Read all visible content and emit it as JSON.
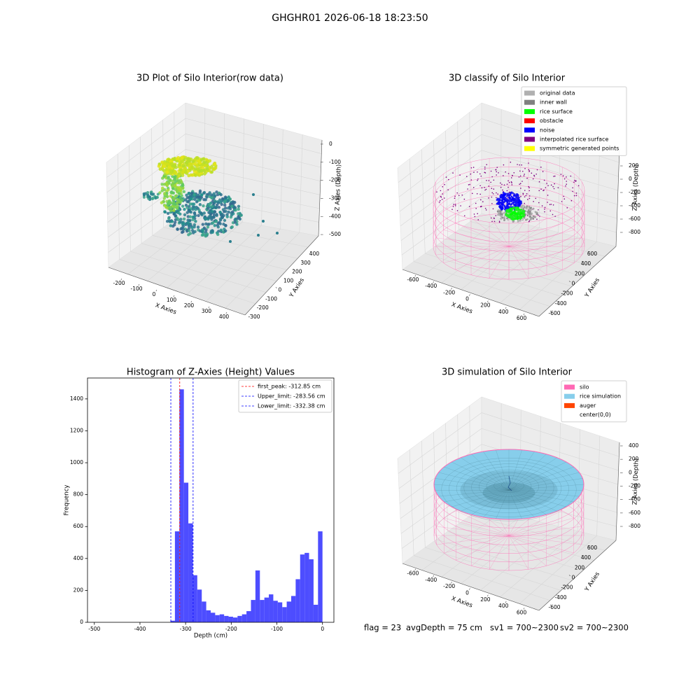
{
  "title": "GHGHR01 2026-06-18 18:23:50",
  "footer": [
    "flag = 23",
    "avgDepth = 75 cm",
    "sv1 = 700~2300",
    "sv2 = 700~2300"
  ],
  "chart_data": [
    {
      "type": "scatter3d",
      "title": "3D Plot of Silo Interior(row data)",
      "xlabel": "X Axies",
      "ylabel": "Y Axies",
      "zlabel": "Z Axies (Depth)",
      "xlim": [
        -250,
        450
      ],
      "xticks": [
        -200,
        -100,
        0,
        100,
        200,
        300,
        400
      ],
      "ylim": [
        -350,
        450
      ],
      "yticks": [
        -300,
        -200,
        -100,
        0,
        100,
        200,
        300,
        400
      ],
      "zlim": [
        -550,
        50
      ],
      "zticks": [
        -500,
        -400,
        -300,
        -200,
        -100,
        0
      ]
    },
    {
      "type": "scatter3d",
      "title": "3D classify of Silo Interior",
      "xlabel": "X Axies",
      "ylabel": "Y Axies",
      "zlabel": "Z Axies (Depth)",
      "xlim": [
        -700,
        700
      ],
      "xticks": [
        -600,
        -400,
        -200,
        0,
        200,
        400,
        600
      ],
      "ylim": [
        -700,
        700
      ],
      "yticks": [
        -600,
        -400,
        -200,
        0,
        200,
        400,
        600
      ],
      "zlim": [
        -900,
        300
      ],
      "zticks": [
        -800,
        -600,
        -400,
        -200,
        0,
        200
      ],
      "legend": [
        {
          "label": "original data",
          "color": "#b0b0b0"
        },
        {
          "label": "inner wall",
          "color": "#808080"
        },
        {
          "label": "rice surface",
          "color": "#00ff00"
        },
        {
          "label": "obstacle",
          "color": "#ff0000"
        },
        {
          "label": "noise",
          "color": "#0000ff"
        },
        {
          "label": "interpolated rice surface",
          "color": "#800080"
        },
        {
          "label": "symmetric generated points",
          "color": "#ffff00"
        }
      ]
    },
    {
      "type": "histogram",
      "title": "Histogram of Z-Axies (Height) Values",
      "xlabel": "Depth (cm)",
      "ylabel": "Frequency",
      "color": "#4d4dff",
      "xlim": [
        -515,
        25
      ],
      "xticks": [
        -500,
        -400,
        -300,
        -200,
        -100,
        0
      ],
      "ylim": [
        0,
        1531
      ],
      "yticks": [
        0,
        200,
        400,
        600,
        800,
        1000,
        1200,
        1400
      ],
      "bins": [
        -333.2,
        -323.4,
        -313.6,
        -303.8,
        -294.0,
        -284.2,
        -274.4,
        -264.6,
        -254.8,
        -245.0,
        -235.2,
        -225.4,
        -215.6,
        -205.8,
        -196.0,
        -186.2,
        -176.4,
        -166.6,
        -156.8,
        -147.0,
        -137.2,
        -127.4,
        -117.6,
        -107.8,
        -98.0,
        -88.2,
        -78.4,
        -68.6,
        -58.8,
        -49.0,
        -39.2,
        -29.4,
        -19.6,
        -9.8,
        0
      ],
      "counts": [
        10,
        570,
        1460,
        875,
        620,
        295,
        205,
        130,
        75,
        60,
        45,
        50,
        40,
        35,
        30,
        40,
        50,
        70,
        140,
        325,
        140,
        155,
        175,
        135,
        125,
        95,
        130,
        165,
        270,
        425,
        435,
        395,
        110,
        570
      ],
      "vlines": [
        {
          "label": "first_peak: -312.85 cm",
          "value": -312.85,
          "color": "#ff0000"
        },
        {
          "label": "Upper_limit: -283.56 cm",
          "value": -283.56,
          "color": "#0000ff"
        },
        {
          "label": "Lower_limit: -332.38 cm",
          "value": -332.38,
          "color": "#0000ff"
        }
      ]
    },
    {
      "type": "surface3d",
      "title": "3D simulation of Silo Interior",
      "xlabel": "X Axies",
      "ylabel": "Y Axies",
      "zlabel": "Z Axies (Depth)",
      "xlim": [
        -700,
        700
      ],
      "xticks": [
        -600,
        -400,
        -200,
        0,
        200,
        400,
        600
      ],
      "ylim": [
        -700,
        700
      ],
      "yticks": [
        -600,
        -400,
        -200,
        0,
        200,
        400,
        600
      ],
      "zlim": [
        -900,
        500
      ],
      "zticks": [
        -800,
        -600,
        -400,
        -200,
        0,
        200,
        400
      ],
      "legend": [
        {
          "label": "silo",
          "color": "#ff69b4"
        },
        {
          "label": "rice simulation",
          "color": "#87ceeb"
        },
        {
          "label": "auger",
          "color": "#ff4500"
        },
        {
          "label": "center(0,0)",
          "color": "#ffffff"
        }
      ]
    }
  ]
}
